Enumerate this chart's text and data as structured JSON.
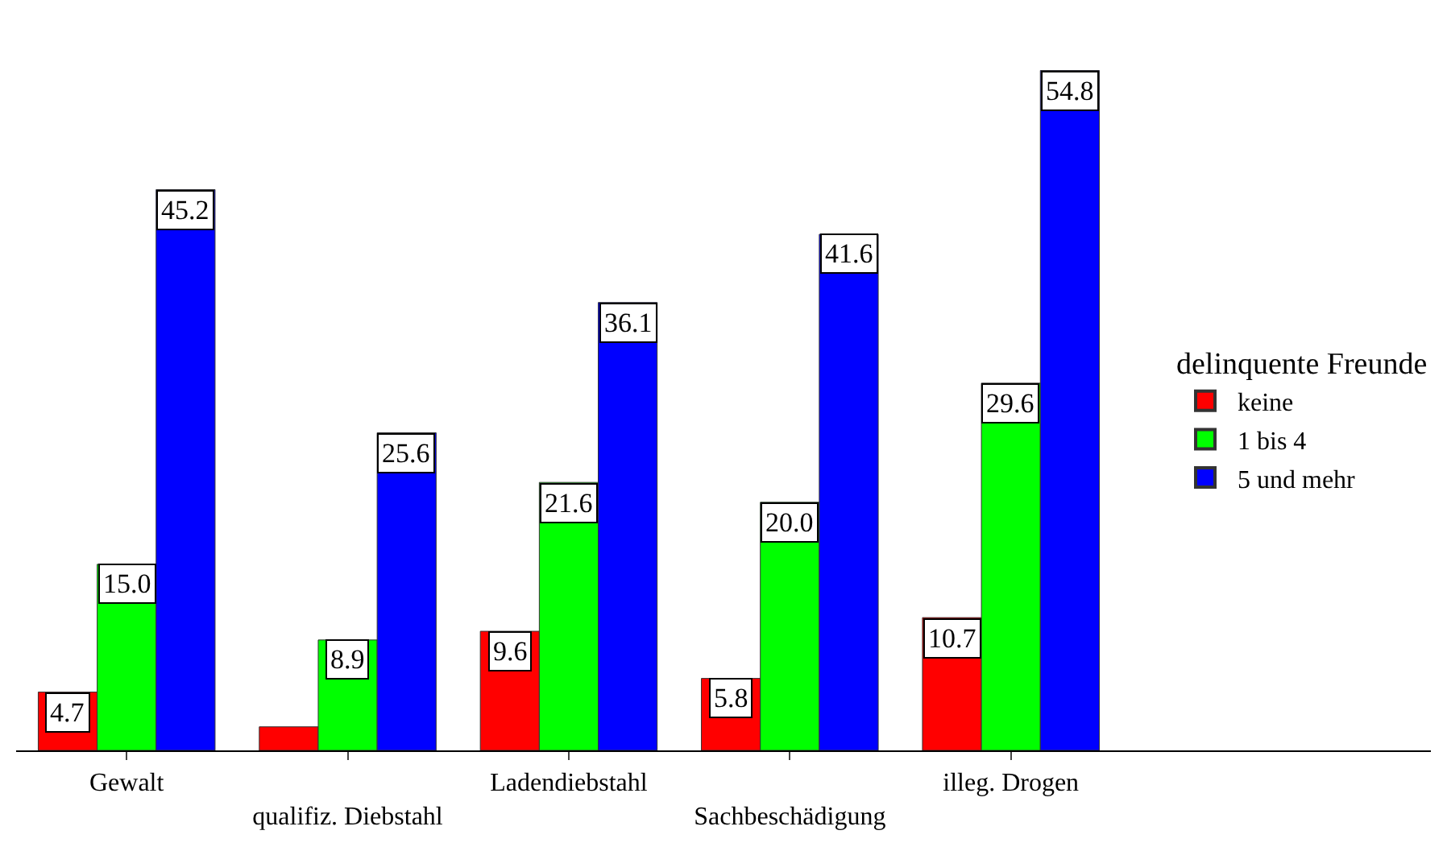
{
  "chart_data": {
    "type": "bar",
    "categories": [
      "Gewalt",
      "qualifiz. Diebstahl",
      "Ladendiebstahl",
      "Sachbeschädigung",
      "illeg. Drogen"
    ],
    "series": [
      {
        "name": "keine",
        "color": "#ff0000",
        "values": [
          4.7,
          1.9,
          9.6,
          5.8,
          10.7
        ],
        "value_labels": [
          "4.7",
          null,
          "9.6",
          "5.8",
          "10.7"
        ]
      },
      {
        "name": "1 bis 4",
        "color": "#00ff00",
        "values": [
          15.0,
          8.9,
          21.6,
          20.0,
          29.6
        ],
        "value_labels": [
          "15.0",
          "8.9",
          "21.6",
          "20.0",
          "29.6"
        ]
      },
      {
        "name": "5 und mehr",
        "color": "#0000ff",
        "values": [
          45.2,
          25.6,
          36.1,
          41.6,
          54.8
        ],
        "value_labels": [
          "45.2",
          "25.6",
          "36.1",
          "41.6",
          "54.8"
        ]
      }
    ],
    "legend_title": "delinquente Freunde",
    "legend": "right"
  }
}
